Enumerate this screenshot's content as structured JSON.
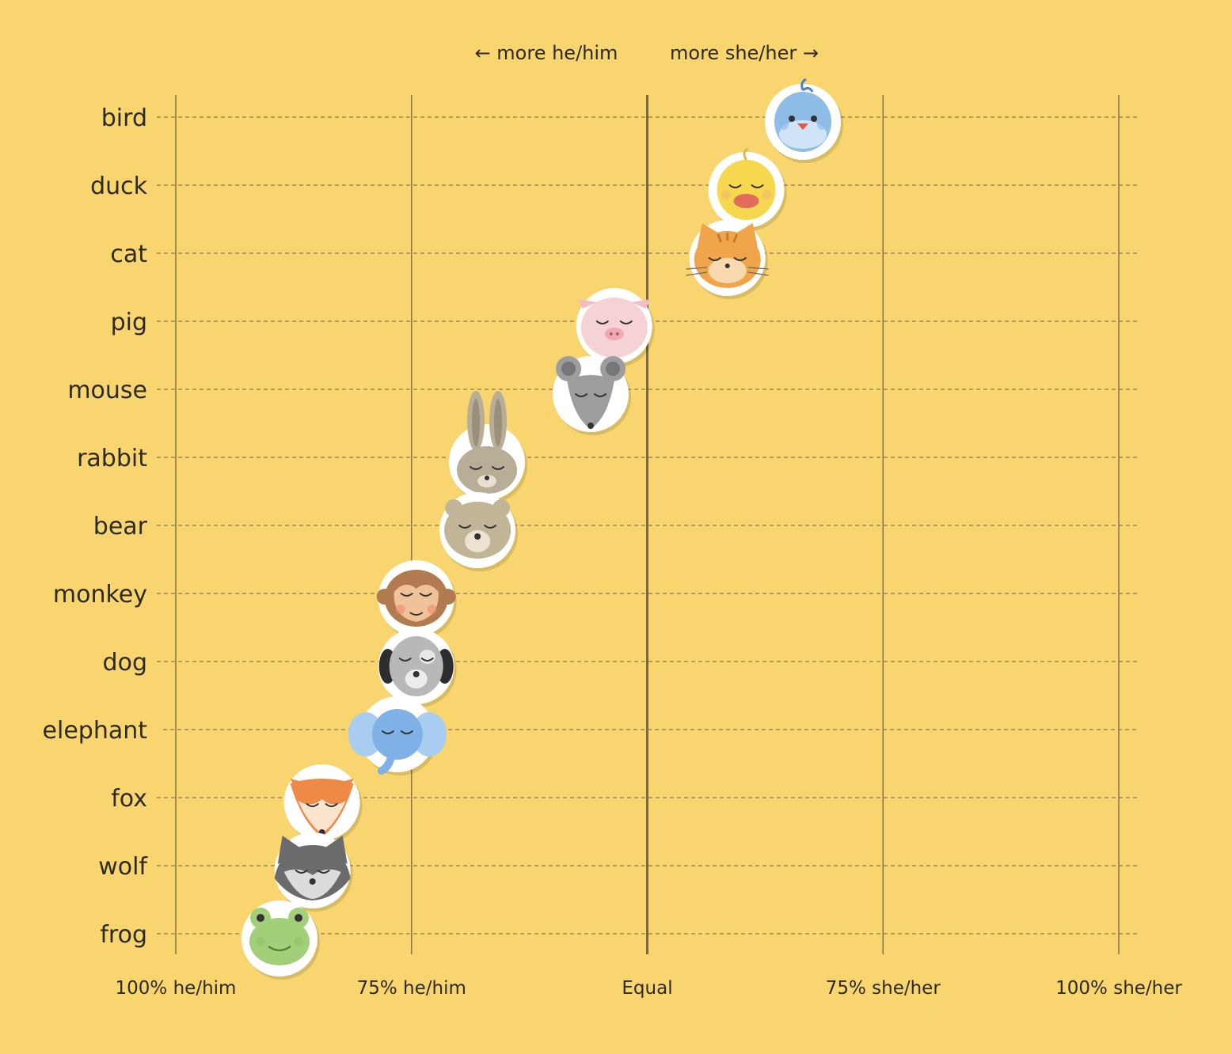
{
  "chart_data": {
    "type": "scatter",
    "title": "",
    "direction_labels": {
      "left": "← more he/him",
      "right": "more she/her →"
    },
    "xlim": [
      -100,
      100
    ],
    "x_ticks": [
      {
        "value": -100,
        "label": "100% he/him"
      },
      {
        "value": -50,
        "label": "75% he/him"
      },
      {
        "value": 0,
        "label": "Equal"
      },
      {
        "value": 50,
        "label": "75% she/her"
      },
      {
        "value": 100,
        "label": "100% she/her"
      }
    ],
    "categories": [
      "bird",
      "duck",
      "cat",
      "pig",
      "mouse",
      "rabbit",
      "bear",
      "monkey",
      "dog",
      "elephant",
      "fox",
      "wolf",
      "frog"
    ],
    "points": [
      {
        "animal": "bird",
        "x": 33,
        "icon": "bird-face-icon",
        "color": "#8fbde8"
      },
      {
        "animal": "duck",
        "x": 21,
        "icon": "duck-face-icon",
        "color": "#f5d84e"
      },
      {
        "animal": "cat",
        "x": 17,
        "icon": "cat-face-icon",
        "color": "#f0a54a"
      },
      {
        "animal": "pig",
        "x": -7,
        "icon": "pig-face-icon",
        "color": "#f5d3d5"
      },
      {
        "animal": "mouse",
        "x": -12,
        "icon": "mouse-face-icon",
        "color": "#9d9d9f"
      },
      {
        "animal": "rabbit",
        "x": -34,
        "icon": "rabbit-face-icon",
        "color": "#b8ad96"
      },
      {
        "animal": "bear",
        "x": -36,
        "icon": "bear-face-icon",
        "color": "#c2b497"
      },
      {
        "animal": "monkey",
        "x": -49,
        "icon": "monkey-face-icon",
        "color": "#b27a4f"
      },
      {
        "animal": "dog",
        "x": -49,
        "icon": "dog-face-icon",
        "color": "#b8b8b8"
      },
      {
        "animal": "elephant",
        "x": -53,
        "icon": "elephant-face-icon",
        "color": "#7fb1e6"
      },
      {
        "animal": "fox",
        "x": -69,
        "icon": "fox-face-icon",
        "color": "#ee8a45"
      },
      {
        "animal": "wolf",
        "x": -71,
        "icon": "wolf-face-icon",
        "color": "#6b6b6e"
      },
      {
        "animal": "frog",
        "x": -78,
        "icon": "frog-face-icon",
        "color": "#a4cf7a"
      }
    ],
    "grid": true,
    "colors": {
      "background": "#f8d56f",
      "grid_line": "#8a7a4a",
      "equal_line": "#7a6a3e",
      "text": "#2d2a22"
    }
  }
}
